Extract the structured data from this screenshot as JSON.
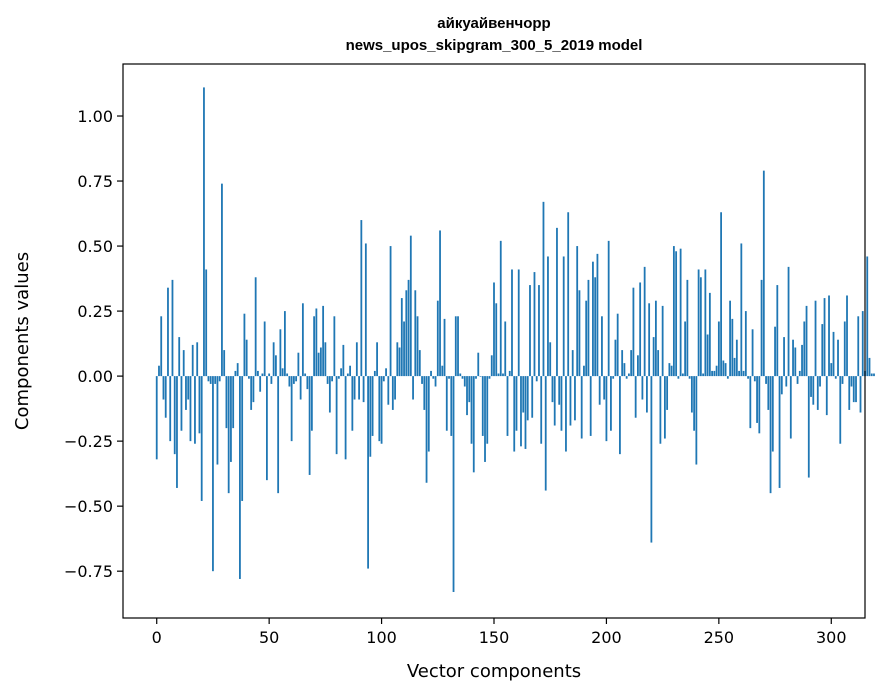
{
  "chart_data": {
    "type": "bar",
    "title": "айкуайвенчорр",
    "subtitle": "news_upos_skipgram_300_5_2019 model",
    "xlabel": "Vector components",
    "ylabel": "Components values",
    "xlim": [
      -15,
      315
    ],
    "ylim": [
      -0.93,
      1.2
    ],
    "xticks": [
      0,
      50,
      100,
      150,
      200,
      250,
      300
    ],
    "xtick_labels": [
      "0",
      "50",
      "100",
      "150",
      "200",
      "250",
      "300"
    ],
    "yticks": [
      1.0,
      0.75,
      0.5,
      0.25,
      0.0,
      -0.25,
      -0.5,
      -0.75
    ],
    "ytick_labels": [
      "1.00",
      "0.75",
      "0.50",
      "0.25",
      "0.00",
      "−0.25",
      "−0.50",
      "−0.75"
    ],
    "bar_color": "#1f77b4",
    "grid": false,
    "values": [
      -0.32,
      0.04,
      0.23,
      -0.09,
      -0.16,
      0.34,
      -0.25,
      0.37,
      -0.3,
      -0.43,
      0.15,
      -0.21,
      0.1,
      -0.13,
      -0.09,
      -0.25,
      0.12,
      -0.26,
      0.13,
      -0.22,
      -0.48,
      1.11,
      0.41,
      -0.02,
      -0.03,
      -0.75,
      -0.03,
      -0.34,
      -0.02,
      0.74,
      0.1,
      -0.2,
      -0.45,
      -0.33,
      -0.2,
      0.02,
      0.05,
      -0.78,
      -0.48,
      0.24,
      0.14,
      -0.01,
      -0.13,
      -0.1,
      0.38,
      0.02,
      -0.06,
      0.01,
      0.21,
      -0.4,
      0.01,
      -0.03,
      0.13,
      0.08,
      -0.45,
      0.18,
      0.03,
      0.25,
      0.01,
      -0.04,
      -0.25,
      -0.03,
      -0.02,
      0.09,
      -0.09,
      0.28,
      0.01,
      -0.05,
      -0.38,
      -0.21,
      0.23,
      0.26,
      0.09,
      0.11,
      0.27,
      0.13,
      -0.03,
      -0.14,
      -0.02,
      0.23,
      -0.3,
      -0.01,
      0.03,
      0.12,
      -0.32,
      0.01,
      0.04,
      -0.21,
      -0.09,
      0.13,
      -0.09,
      0.6,
      -0.1,
      0.51,
      -0.74,
      -0.31,
      -0.23,
      0.02,
      0.13,
      -0.25,
      -0.26,
      -0.02,
      0.03,
      -0.11,
      0.5,
      -0.13,
      -0.09,
      0.13,
      0.11,
      0.3,
      0.21,
      0.33,
      0.37,
      0.54,
      -0.09,
      0.33,
      0.23,
      0.1,
      -0.03,
      -0.13,
      -0.41,
      -0.29,
      0.02,
      -0.01,
      -0.04,
      0.29,
      0.56,
      0.04,
      0.22,
      -0.21,
      -0.01,
      -0.23,
      -0.83,
      0.23,
      0.23,
      0.01,
      -0.01,
      -0.04,
      -0.15,
      -0.1,
      -0.26,
      -0.37,
      -0.01,
      0.09,
      0.0,
      -0.23,
      -0.33,
      -0.26,
      -0.01,
      0.08,
      0.36,
      0.28,
      0.01,
      0.52,
      0.01,
      0.21,
      -0.23,
      0.02,
      0.41,
      -0.29,
      -0.21,
      0.41,
      -0.27,
      -0.14,
      -0.28,
      -0.17,
      0.35,
      -0.16,
      0.4,
      -0.02,
      0.35,
      -0.26,
      0.67,
      -0.44,
      0.46,
      0.13,
      -0.1,
      -0.19,
      0.57,
      -0.11,
      -0.21,
      0.46,
      -0.29,
      0.63,
      -0.19,
      0.1,
      -0.17,
      0.5,
      0.33,
      -0.24,
      0.04,
      0.29,
      0.37,
      -0.23,
      0.44,
      0.38,
      0.47,
      -0.11,
      0.23,
      -0.09,
      -0.25,
      0.52,
      -0.21,
      -0.01,
      0.14,
      0.24,
      -0.3,
      0.1,
      0.05,
      -0.01,
      0.01,
      0.1,
      0.34,
      -0.16,
      0.08,
      0.36,
      -0.09,
      0.42,
      -0.14,
      0.28,
      -0.64,
      0.15,
      0.29,
      0.1,
      -0.26,
      0.27,
      -0.24,
      -0.13,
      0.05,
      0.04,
      0.5,
      0.48,
      -0.01,
      0.49,
      0.01,
      0.21,
      0.37,
      -0.01,
      -0.14,
      -0.21,
      -0.34,
      0.41,
      0.38,
      0.01,
      0.41,
      0.16,
      0.32,
      0.02,
      0.02,
      0.04,
      0.21,
      0.63,
      0.06,
      0.05,
      -0.01,
      0.29,
      0.22,
      0.07,
      0.14,
      0.02,
      0.51,
      0.02,
      0.25,
      -0.01,
      -0.2,
      0.18,
      -0.02,
      -0.18,
      -0.22,
      0.37,
      0.79,
      -0.03,
      -0.13,
      -0.45,
      -0.29,
      0.19,
      0.35,
      -0.43,
      -0.07,
      0.15,
      -0.04,
      0.42,
      -0.24,
      0.14,
      0.11,
      -0.03,
      0.02,
      0.12,
      0.21,
      0.27,
      -0.39,
      -0.08,
      -0.11,
      0.29,
      -0.13,
      -0.04,
      0.2,
      0.3,
      -0.15,
      0.31,
      0.05,
      0.17,
      -0.01,
      0.14,
      -0.26,
      -0.03,
      0.21,
      0.31,
      -0.13,
      -0.04,
      -0.1,
      -0.1,
      0.23,
      -0.14,
      0.25,
      0.02,
      0.46,
      0.07,
      0.01,
      0.01
    ]
  }
}
